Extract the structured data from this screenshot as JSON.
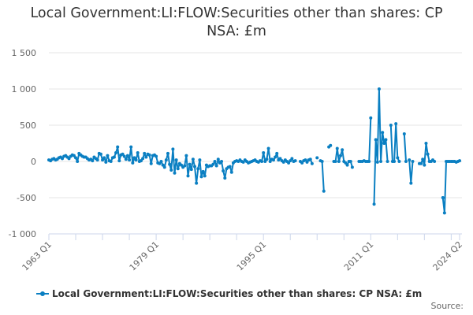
{
  "title_line1": "Local Government:LI:FLOW:Securities other than shares: CP",
  "title_line2": "NSA: £m",
  "source_label": "Source:",
  "chart_data": {
    "type": "line",
    "title": "Local Government:LI:FLOW:Securities other than shares: CP NSA: £m",
    "xlabel": "",
    "ylabel": "",
    "x_start": "1963 Q1",
    "x_end": "2024 Q2",
    "ylim": [
      -1000,
      1500
    ],
    "y_ticks": [
      -1000,
      -500,
      0,
      500,
      1000,
      1500
    ],
    "y_tick_labels": [
      "-1 000",
      "-500",
      "0",
      "500",
      "1 000",
      "1 500"
    ],
    "x_tick_labels": [
      {
        "index": 0,
        "label": "1963 Q1"
      },
      {
        "index": 64,
        "label": "1979 Q1"
      },
      {
        "index": 128,
        "label": "1995 Q1"
      },
      {
        "index": 192,
        "label": "2011 Q1"
      },
      {
        "index": 245,
        "label": "2024 Q2"
      }
    ],
    "grid": true,
    "legend_position": "bottom",
    "color": "#0a7fc2",
    "series": [
      {
        "name": "Local Government:LI:FLOW:Securities other than shares: CP NSA: £m",
        "values": [
          20,
          10,
          30,
          40,
          20,
          30,
          50,
          60,
          40,
          70,
          80,
          60,
          40,
          70,
          90,
          80,
          50,
          0,
          110,
          90,
          70,
          60,
          60,
          40,
          20,
          30,
          10,
          60,
          40,
          20,
          110,
          100,
          20,
          50,
          -10,
          80,
          10,
          0,
          50,
          60,
          120,
          200,
          10,
          90,
          100,
          70,
          30,
          80,
          20,
          200,
          -20,
          50,
          20,
          120,
          0,
          10,
          40,
          110,
          60,
          100,
          90,
          -30,
          80,
          90,
          70,
          -20,
          -30,
          0,
          -50,
          -80,
          20,
          110,
          -40,
          -120,
          170,
          -160,
          20,
          -100,
          -30,
          -50,
          -80,
          -60,
          80,
          -200,
          -40,
          -110,
          30,
          -70,
          -300,
          -100,
          20,
          -210,
          -140,
          -200,
          -50,
          -70,
          -60,
          -60,
          -40,
          0,
          -60,
          30,
          -20,
          0,
          -130,
          -230,
          -100,
          -80,
          -70,
          -150,
          -20,
          0,
          10,
          0,
          20,
          0,
          -10,
          20,
          0,
          -20,
          -10,
          0,
          10,
          20,
          0,
          -10,
          10,
          0,
          120,
          0,
          30,
          180,
          0,
          30,
          20,
          60,
          110,
          20,
          40,
          10,
          -10,
          20,
          0,
          -20,
          10,
          40,
          0,
          10,
          null,
          null,
          0,
          -20,
          10,
          20,
          -10,
          20,
          30,
          -30,
          null,
          null,
          50,
          null,
          10,
          0,
          -410,
          null,
          null,
          200,
          220,
          null,
          0,
          0,
          180,
          0,
          80,
          160,
          0,
          -20,
          -50,
          0,
          0,
          -80,
          null,
          null,
          null,
          0,
          0,
          0,
          10,
          0,
          0,
          0,
          600,
          null,
          -590,
          300,
          -10,
          1000,
          0,
          400,
          250,
          300,
          0,
          null,
          500,
          0,
          0,
          520,
          50,
          0,
          null,
          null,
          380,
          0,
          null,
          20,
          -300,
          0,
          null,
          null,
          null,
          -30,
          -30,
          30,
          -50,
          250,
          100,
          0,
          0,
          20,
          0,
          null,
          null,
          null,
          null,
          -500,
          -710,
          0,
          0,
          0,
          0,
          0,
          0,
          -10,
          0,
          10
        ]
      }
    ]
  }
}
